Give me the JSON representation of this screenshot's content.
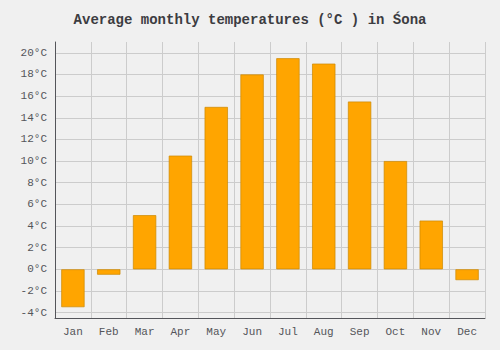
{
  "chart_data": {
    "type": "bar",
    "title": "Average monthly temperatures (°C ) in Śona",
    "categories": [
      "Jan",
      "Feb",
      "Mar",
      "Apr",
      "May",
      "Jun",
      "Jul",
      "Aug",
      "Sep",
      "Oct",
      "Nov",
      "Dec"
    ],
    "values": [
      -3.5,
      -0.5,
      5.0,
      10.5,
      15.0,
      18.0,
      19.5,
      19.0,
      15.5,
      10.0,
      4.5,
      -1.0
    ],
    "color": "#FFA500",
    "ylim": [
      -4.5,
      21
    ],
    "yticks": [
      {
        "value": -4,
        "label": "-4°C"
      },
      {
        "value": -2,
        "label": "-2°C"
      },
      {
        "value": 0,
        "label": "0°C"
      },
      {
        "value": 2,
        "label": "2°C"
      },
      {
        "value": 4,
        "label": "4°C"
      },
      {
        "value": 6,
        "label": "6°C"
      },
      {
        "value": 8,
        "label": "8°C"
      },
      {
        "value": 10,
        "label": "10°C"
      },
      {
        "value": 12,
        "label": "12°C"
      },
      {
        "value": 14,
        "label": "14°C"
      },
      {
        "value": 16,
        "label": "16°C"
      },
      {
        "value": 18,
        "label": "18°C"
      },
      {
        "value": 20,
        "label": "20°C"
      }
    ],
    "grid": true
  }
}
